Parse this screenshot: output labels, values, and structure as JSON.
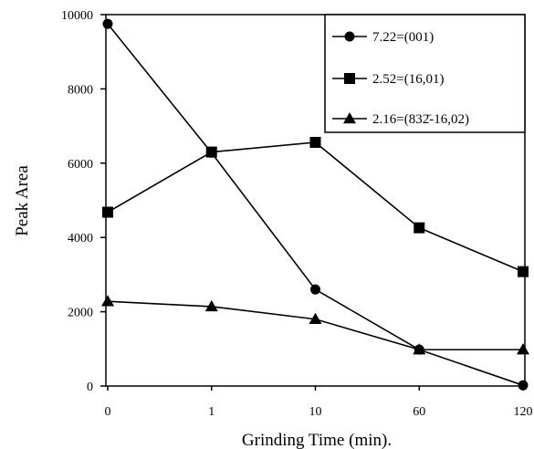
{
  "chart_data": {
    "type": "line",
    "title": "",
    "xlabel": "Grinding Time (min).",
    "ylabel": "Peak Area",
    "categories": [
      "0",
      "1",
      "10",
      "60",
      "120"
    ],
    "yticks": [
      "0",
      "2000",
      "4000",
      "6000",
      "8000",
      "10000"
    ],
    "ylim": [
      0,
      10000
    ],
    "grid": false,
    "legend_position": "top-right",
    "series": [
      {
        "name": "7.22=(001)",
        "marker": "circle",
        "color": "#000000",
        "values": [
          9750,
          6280,
          2600,
          980,
          20
        ]
      },
      {
        "name": "2.52=(16,01)",
        "marker": "square",
        "color": "#000000",
        "values": [
          4680,
          6300,
          6560,
          4260,
          3080
        ]
      },
      {
        "name": "2.16=(832̄-16,02)",
        "marker": "triangle",
        "color": "#000000",
        "values": [
          2280,
          2140,
          1800,
          980,
          980
        ]
      }
    ]
  }
}
